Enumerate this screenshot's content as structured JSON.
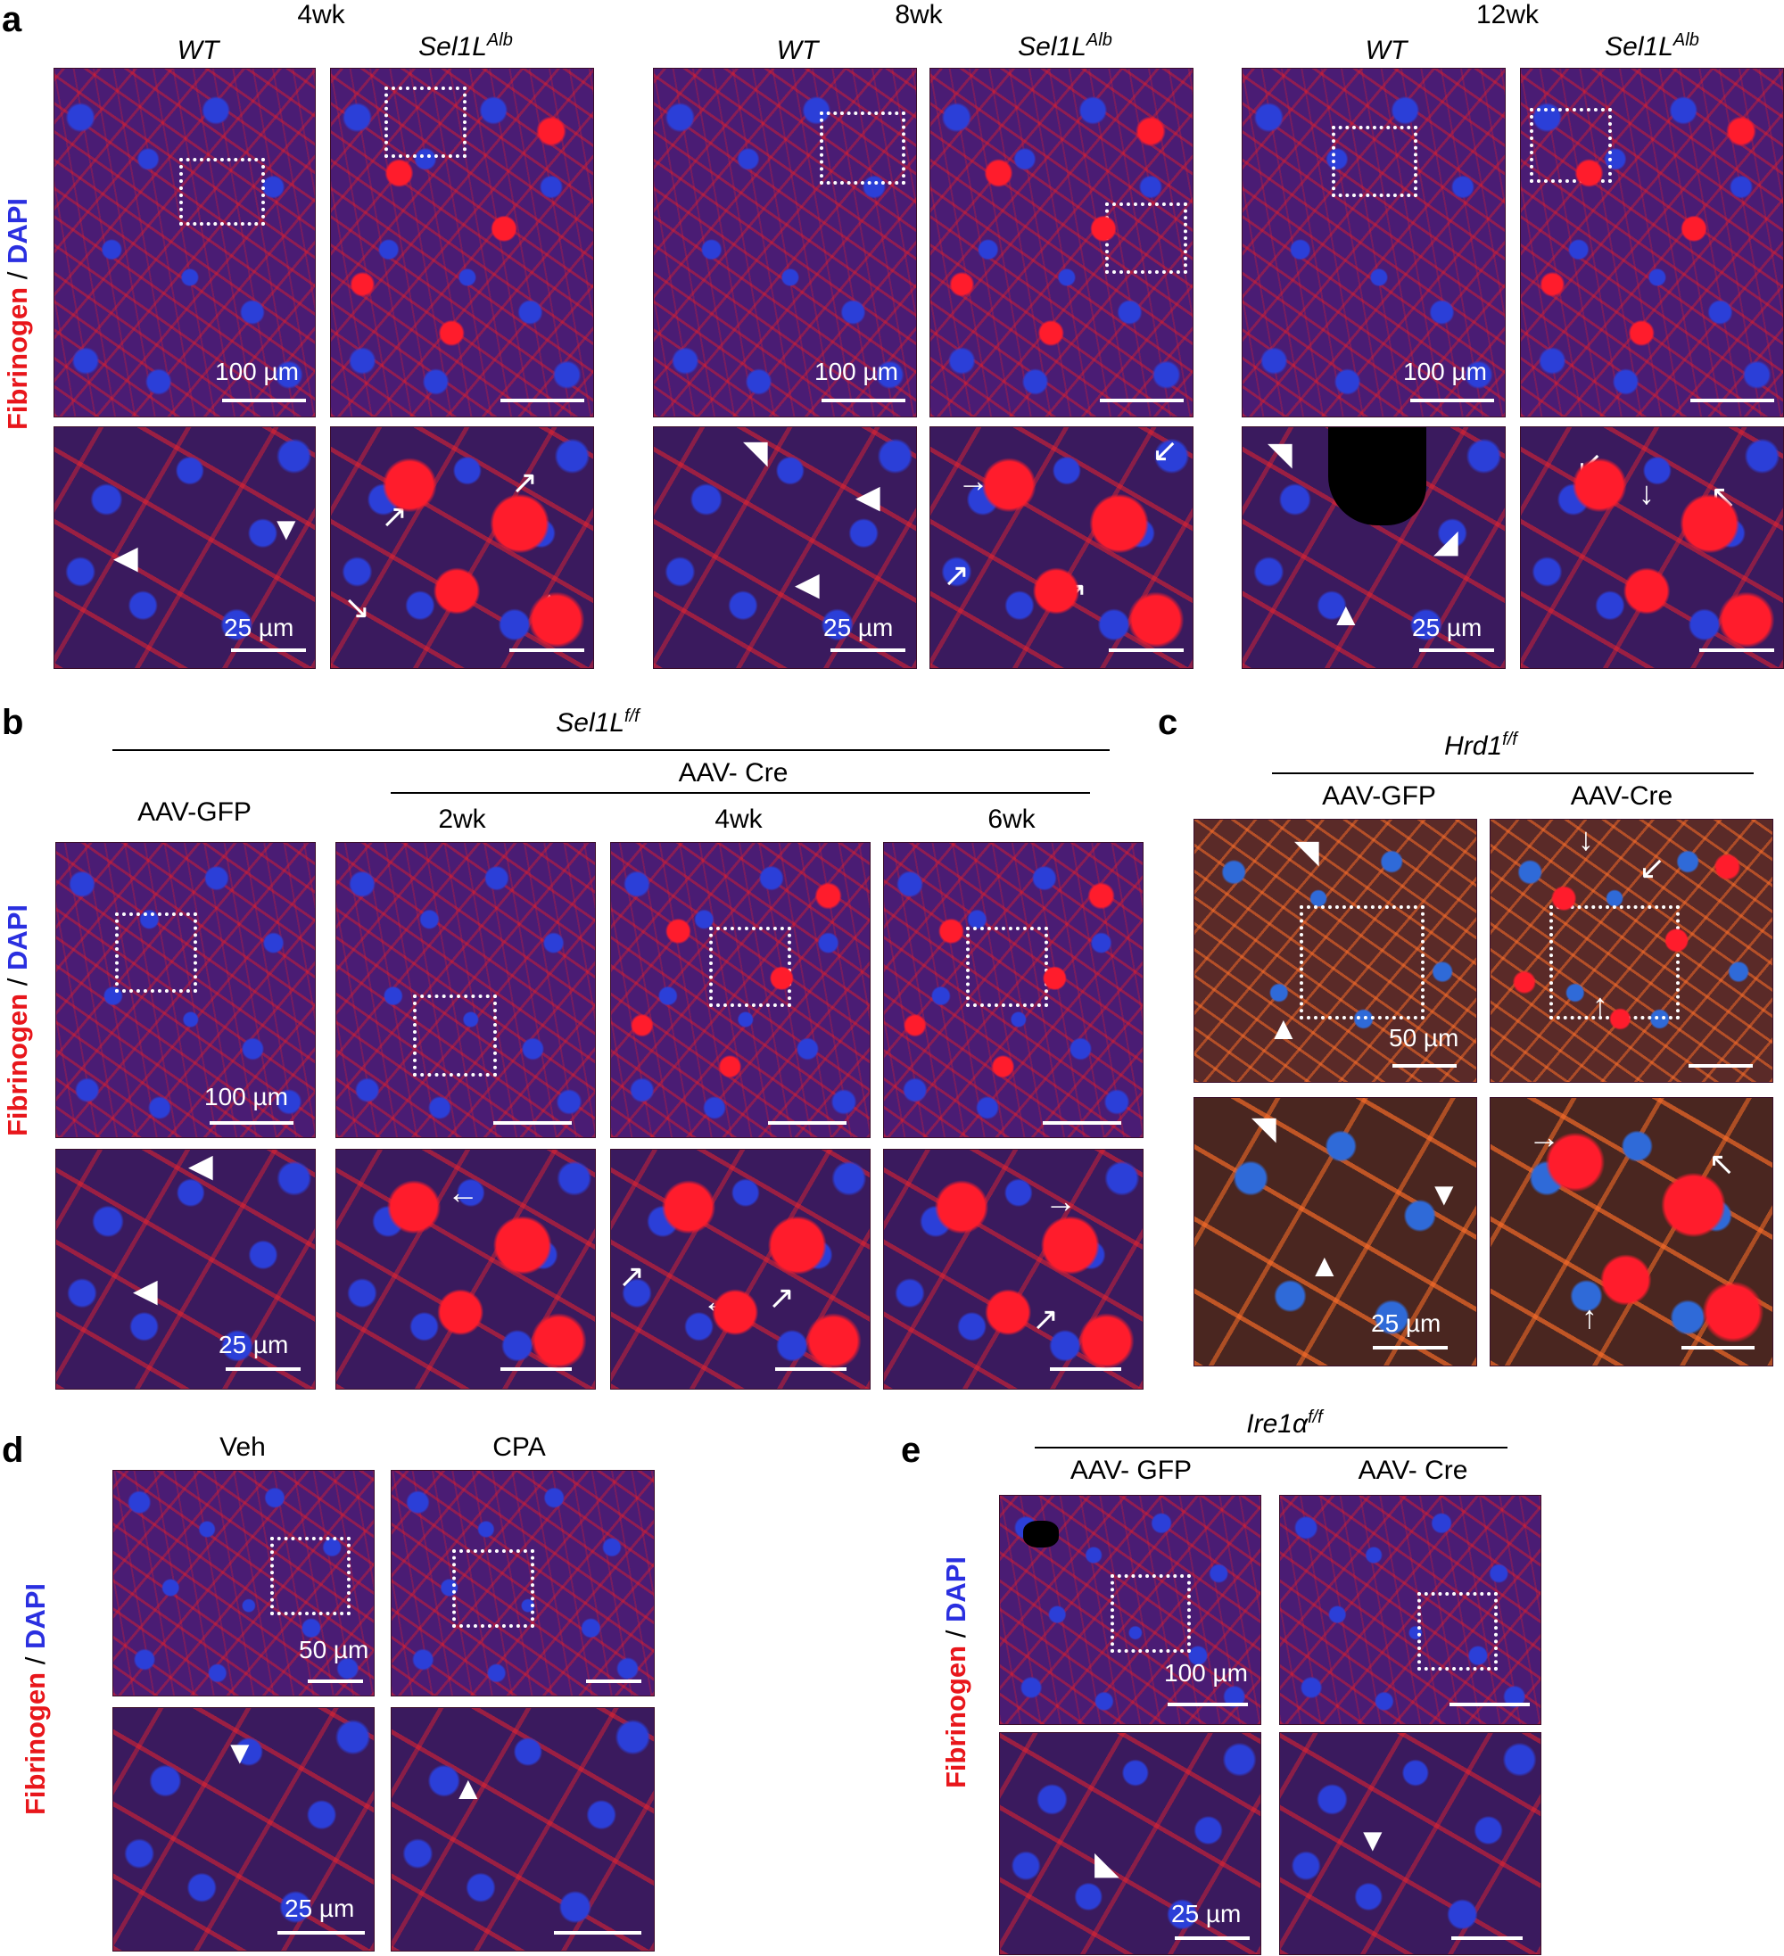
{
  "panels": {
    "a": "a",
    "b": "b",
    "c": "c",
    "d": "d",
    "e": "e"
  },
  "stain": {
    "red": "Fibrinogen",
    "sep": " / ",
    "blue": "DAPI"
  },
  "colors": {
    "fibrinogen": "#e8161b",
    "dapi": "#2a2fe0"
  },
  "a": {
    "time_4wk": "4wk",
    "time_8wk": "8wk",
    "time_12wk": "12wk",
    "wt": "WT",
    "sel1l": "Sel1L",
    "alb": "Alb",
    "scale_100": "100 µm",
    "scale_25": "25 µm"
  },
  "b": {
    "top": "Sel1L",
    "top_sup": "f/f",
    "gfp": "AAV-GFP",
    "cre": "AAV- Cre",
    "t2": "2wk",
    "t4": "4wk",
    "t6": "6wk",
    "scale_100": "100 µm",
    "scale_25": "25 µm"
  },
  "c": {
    "top": "Hrd1",
    "top_sup": "f/f",
    "gfp": "AAV-GFP",
    "cre": "AAV-Cre",
    "scale_50": "50 µm",
    "scale_25": "25 µm"
  },
  "d": {
    "veh": "Veh",
    "cpa": "CPA",
    "scale_50": "50 µm",
    "scale_25": "25 µm"
  },
  "e": {
    "top": "Ire1α",
    "top_sup": "f/f",
    "gfp": "AAV- GFP",
    "cre": "AAV- Cre",
    "scale_100": "100 µm",
    "scale_25": "25 µm"
  },
  "icons": {
    "arrowhead": "arrowhead-icon",
    "arrow": "arrow-icon"
  }
}
